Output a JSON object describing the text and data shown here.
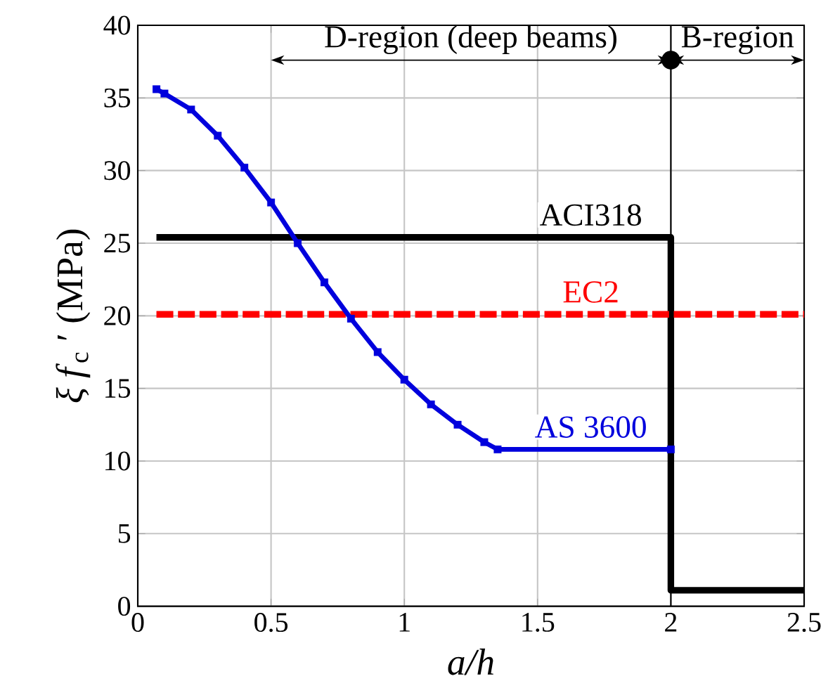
{
  "chart_data": {
    "type": "line",
    "xlabel": "a/h",
    "ylabel": "*ξ f*$_{c}$ ′ (MPa)",
    "xlim": [
      0,
      2.5
    ],
    "ylim": [
      0,
      40
    ],
    "xticks": [
      0,
      0.5,
      1,
      1.5,
      2,
      2.5
    ],
    "yticks": [
      0,
      5,
      10,
      15,
      20,
      25,
      30,
      35,
      40
    ],
    "grid": true,
    "legend": false,
    "series": [
      {
        "name": "ACI318",
        "color": "#000000",
        "line_style": "solid",
        "marker": "none",
        "x": [
          0.07,
          2,
          2,
          2.5
        ],
        "values": [
          25.4,
          25.4,
          1.1,
          1.1
        ]
      },
      {
        "name": "EC2",
        "color": "#ff0000",
        "line_style": "dashed",
        "marker": "none",
        "x": [
          0.07,
          2.5
        ],
        "values": [
          20.1,
          20.1
        ]
      },
      {
        "name": "AS 3600",
        "color": "#0000dd",
        "line_style": "solid",
        "marker": "square",
        "x": [
          0.07,
          0.1,
          0.2,
          0.3,
          0.4,
          0.5,
          0.6,
          0.7,
          0.8,
          0.9,
          1.0,
          1.1,
          1.2,
          1.3,
          1.35,
          2.0
        ],
        "values": [
          35.6,
          35.3,
          34.2,
          32.4,
          30.2,
          27.8,
          25.0,
          22.3,
          19.8,
          17.5,
          15.6,
          13.9,
          12.5,
          11.3,
          10.8,
          10.8
        ]
      }
    ],
    "annotations": [
      "D-region (deep beams)",
      "B-region"
    ],
    "ref_lines": [
      {
        "axis": "x",
        "value": 2,
        "color": "#000000"
      }
    ]
  }
}
